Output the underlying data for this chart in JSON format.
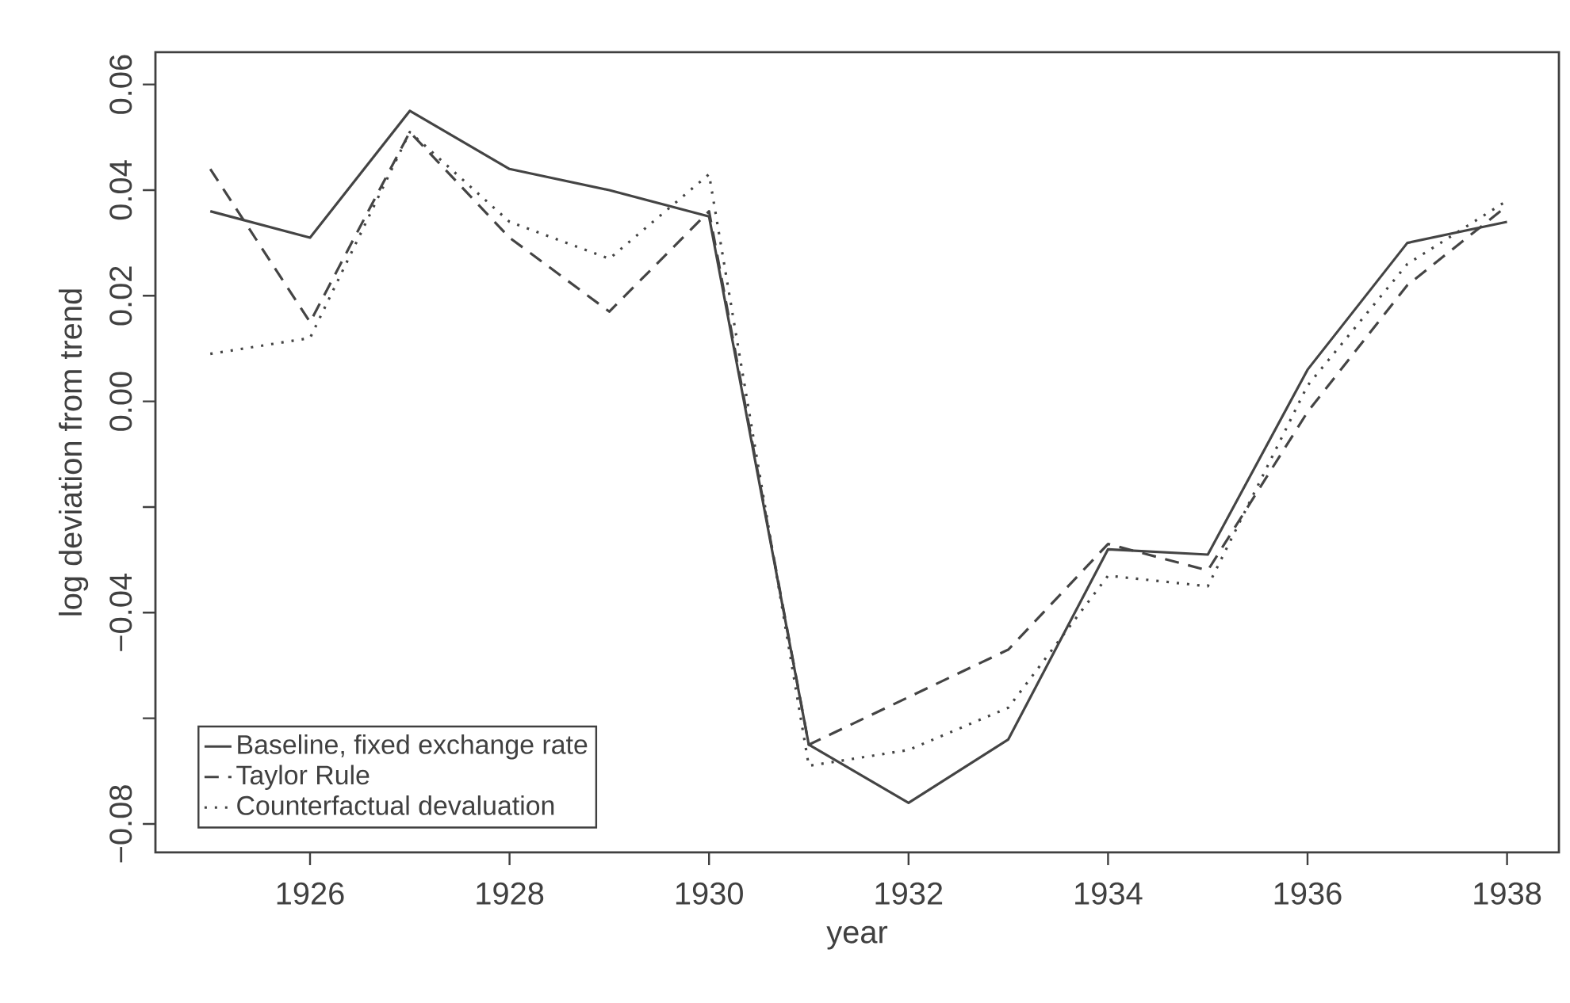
{
  "chart_data": {
    "type": "line",
    "xlabel": "year",
    "ylabel": "log deviation from trend",
    "x": [
      1925,
      1926,
      1927,
      1928,
      1929,
      1930,
      1931,
      1932,
      1933,
      1934,
      1935,
      1936,
      1937,
      1938
    ],
    "series": [
      {
        "name": "Baseline, fixed exchange rate",
        "color": "#444444",
        "line_style": "solid",
        "values": [
          0.036,
          0.031,
          0.055,
          0.044,
          0.04,
          0.035,
          -0.065,
          -0.076,
          -0.064,
          -0.028,
          -0.029,
          0.006,
          0.03,
          0.034
        ]
      },
      {
        "name": "Taylor Rule",
        "color": "#444444",
        "line_style": "dashed",
        "values": [
          0.044,
          0.015,
          0.051,
          0.031,
          0.017,
          0.036,
          -0.065,
          -0.056,
          -0.047,
          -0.027,
          -0.032,
          -0.002,
          0.022,
          0.037
        ]
      },
      {
        "name": "Counterfactual devaluation",
        "color": "#444444",
        "line_style": "dotted",
        "values": [
          0.009,
          0.012,
          0.051,
          0.034,
          0.027,
          0.043,
          -0.069,
          -0.066,
          -0.058,
          -0.033,
          -0.035,
          0.003,
          0.026,
          0.038
        ]
      }
    ],
    "xlim": [
      1924.45,
      1938.52
    ],
    "ylim": [
      -0.0854,
      0.0661
    ],
    "xticks": [
      1926,
      1928,
      1930,
      1932,
      1934,
      1936,
      1938
    ],
    "yticks": [
      {
        "value": -0.08,
        "label": "−0.08"
      },
      {
        "value": -0.06,
        "label": null
      },
      {
        "value": -0.04,
        "label": "−0.04"
      },
      {
        "value": -0.02,
        "label": null
      },
      {
        "value": 0,
        "label": "0.00"
      },
      0.02,
      0.04,
      0.06
    ],
    "legend": "bottom left",
    "grid": false
  }
}
